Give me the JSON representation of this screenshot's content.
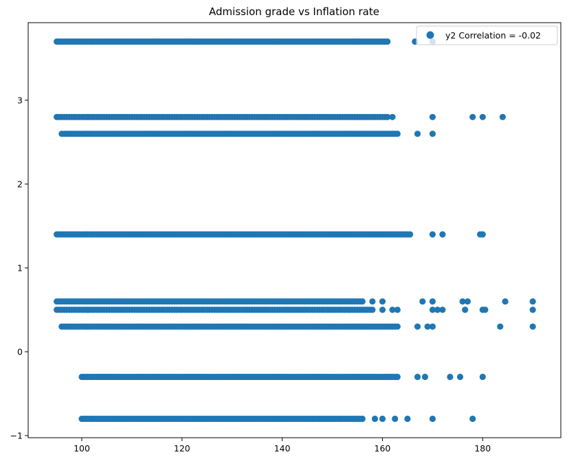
{
  "chart_data": {
    "type": "scatter",
    "title": "Admission grade vs Inflation rate",
    "xlabel": "",
    "ylabel": "",
    "xlim": [
      89.3,
      195.6
    ],
    "ylim": [
      -1.025,
      3.925
    ],
    "x_ticks": [
      100,
      120,
      140,
      160,
      180
    ],
    "y_ticks": [
      -1,
      0,
      1,
      2,
      3
    ],
    "grid": false,
    "legend_position": "top-right",
    "point_color": "#1f77b4",
    "series": [
      {
        "name": "y2 Correlation = -0.02",
        "bands": [
          {
            "y": 3.7,
            "ranges": [
              [
                95,
                161
              ]
            ],
            "outliers": [
              166.5,
              170
            ]
          },
          {
            "y": 2.8,
            "ranges": [
              [
                95,
                161
              ]
            ],
            "outliers": [
              162,
              170,
              178,
              180,
              184
            ]
          },
          {
            "y": 2.6,
            "ranges": [
              [
                96,
                163
              ]
            ],
            "outliers": [
              167,
              170
            ]
          },
          {
            "y": 1.4,
            "ranges": [
              [
                95,
                165.5
              ]
            ],
            "outliers": [
              170,
              172,
              179.5,
              180
            ]
          },
          {
            "y": 0.6,
            "ranges": [
              [
                95,
                156
              ]
            ],
            "outliers": [
              158,
              160,
              168,
              170,
              176,
              177,
              184.5,
              190
            ]
          },
          {
            "y": 0.5,
            "ranges": [
              [
                95,
                158
              ]
            ],
            "outliers": [
              160,
              162,
              163,
              170,
              171,
              172,
              176.5,
              180,
              180.5,
              190
            ]
          },
          {
            "y": 0.3,
            "ranges": [
              [
                96,
                163
              ]
            ],
            "outliers": [
              167,
              169,
              170,
              183.5,
              190
            ]
          },
          {
            "y": -0.3,
            "ranges": [
              [
                100,
                163
              ]
            ],
            "outliers": [
              167,
              168.5,
              173.5,
              175.5,
              180
            ]
          },
          {
            "y": -0.8,
            "ranges": [
              [
                100,
                156
              ]
            ],
            "outliers": [
              158.5,
              160,
              162.5,
              165,
              170,
              178
            ]
          }
        ]
      }
    ]
  }
}
